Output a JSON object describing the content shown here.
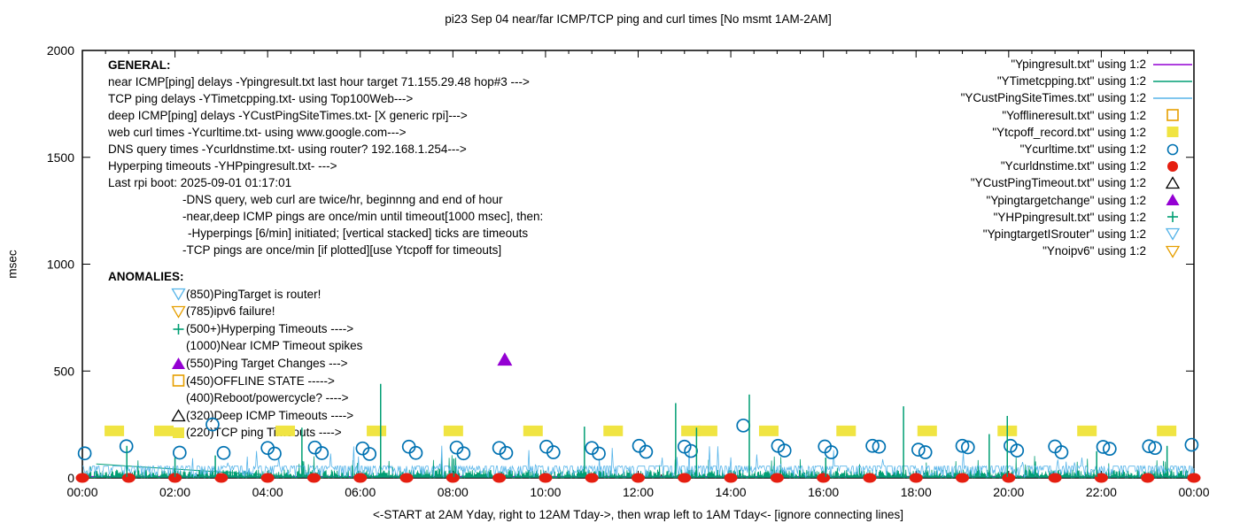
{
  "title": "pi23 Sep 04  near/far ICMP/TCP ping and curl times [No msmt 1AM-2AM]",
  "footer": "<-START at 2AM Yday, right to 12AM Tday->, then wrap left to 1AM Tday<- [ignore connecting lines]",
  "general": {
    "heading": "GENERAL:",
    "lines": [
      {
        "text": "near ICMP[ping] delays -Ypingresult.txt last hour target 71.155.29.48 hop#3 --->",
        "indent": 0
      },
      {
        "text": "TCP ping delays -YTimetcpping.txt- using Top100Web--->",
        "indent": 0
      },
      {
        "text": "deep ICMP[ping] delays -YCustPingSiteTimes.txt- [X generic rpi]--->",
        "indent": 0
      },
      {
        "text": "web curl times -Ycurltime.txt- using www.google.com--->",
        "indent": 0
      },
      {
        "text": "DNS query times -Ycurldnstime.txt- using router? 192.168.1.254--->",
        "indent": 0
      },
      {
        "text": "Hyperping timeouts -YHPpingresult.txt- --->",
        "indent": 0
      },
      {
        "text": "Last rpi boot: 2025-09-01 01:17:01",
        "indent": 0
      },
      {
        "text": "-DNS query, web curl are twice/hr, beginnng and end of hour",
        "indent": 84
      },
      {
        "text": "-near,deep ICMP pings are once/min until timeout[1000 msec], then:",
        "indent": 84
      },
      {
        "text": "-Hyperpings [6/min] initiated; [vertical stacked] ticks are timeouts",
        "indent": 90
      },
      {
        "text": "-TCP pings are once/min [if plotted][use Ytcpoff for timeouts]",
        "indent": 84
      }
    ]
  },
  "anomalies": {
    "heading": "ANOMALIES:",
    "items": [
      {
        "marker": "down-triangle-open",
        "color": "#56b4e9",
        "text": "(850)PingTarget is router!"
      },
      {
        "marker": "down-triangle-open",
        "color": "#e69f00",
        "text": "(785)ipv6 failure!"
      },
      {
        "marker": "plus",
        "color": "#009e73",
        "text": "(500+)Hyperping Timeouts ---->"
      },
      {
        "marker": "none",
        "color": "#000000",
        "text": "(1000)Near ICMP Timeout spikes"
      },
      {
        "marker": "triangle-filled",
        "color": "#9400d3",
        "text": "(550)Ping Target Changes --->"
      },
      {
        "marker": "square-open",
        "color": "#e69f00",
        "text": "(450)OFFLINE STATE ----->"
      },
      {
        "marker": "none",
        "color": "#000000",
        "text": "(400)Reboot/powercycle? ---->"
      },
      {
        "marker": "triangle-open",
        "color": "#000000",
        "text": "(320)Deep ICMP Timeouts ---->"
      },
      {
        "marker": "square-filled",
        "color": "#f0e442",
        "text": "(220)TCP ping Timeouts ---->"
      }
    ]
  },
  "legend": [
    {
      "label": "\"Ypingresult.txt\" using 1:2",
      "marker": "line",
      "color": "#9400d3"
    },
    {
      "label": "\"YTimetcpping.txt\" using 1:2",
      "marker": "line",
      "color": "#009e73"
    },
    {
      "label": "\"YCustPingSiteTimes.txt\" using 1:2",
      "marker": "line",
      "color": "#56b4e9"
    },
    {
      "label": "\"Yofflineresult.txt\" using 1:2",
      "marker": "square-open",
      "color": "#e69f00"
    },
    {
      "label": "\"Ytcpoff_record.txt\" using 1:2",
      "marker": "square-filled",
      "color": "#f0e442"
    },
    {
      "label": "\"Ycurltime.txt\" using 1:2",
      "marker": "circle-open",
      "color": "#0072b2"
    },
    {
      "label": "\"Ycurldnstime.txt\" using 1:2",
      "marker": "circle-filled",
      "color": "#e51e10"
    },
    {
      "label": "\"YCustPingTimeout.txt\" using 1:2",
      "marker": "triangle-open",
      "color": "#000000"
    },
    {
      "label": "\"Ypingtargetchange\" using 1:2",
      "marker": "triangle-filled",
      "color": "#9400d3"
    },
    {
      "label": "\"YHPpingresult.txt\" using 1:2",
      "marker": "plus",
      "color": "#009e73"
    },
    {
      "label": "\"YpingtargetISrouter\" using 1:2",
      "marker": "down-triangle-open",
      "color": "#56b4e9"
    },
    {
      "label": "\"Ynoipv6\" using 1:2",
      "marker": "down-triangle-open",
      "color": "#e69f00"
    }
  ],
  "chart_data": {
    "type": "line",
    "title": "pi23 Sep 04  near/far ICMP/TCP ping and curl times [No msmt 1AM-2AM]",
    "ylabel": "msec",
    "ylim": [
      0,
      2000
    ],
    "y_ticks": [
      0,
      500,
      1000,
      1500,
      2000
    ],
    "x_ticks": [
      "00:00",
      "02:00",
      "04:00",
      "06:00",
      "08:00",
      "10:00",
      "12:00",
      "14:00",
      "16:00",
      "18:00",
      "20:00",
      "22:00",
      "00:00"
    ],
    "x_hours_span": 24,
    "x_minor_step_hours": 0.5,
    "grid": false,
    "legend_position": "top-right",
    "series": [
      {
        "name": "Ypingresult.txt",
        "desc": "near ICMP ping delays",
        "style": "flatline",
        "color": "#9400d3",
        "range_hours": [
          0.1,
          24
        ],
        "flat_value_msec": 6
      },
      {
        "name": "YTimetcpping.txt",
        "desc": "TCP ping delays",
        "style": "noise-grass",
        "color": "#009e73",
        "range_hours": [
          0,
          24
        ],
        "base_msec": 1,
        "max_msec": 38,
        "spike_chance": 0.06,
        "spike_max_msec": 110,
        "seed": 42,
        "connector_line": [
          [
            0.3,
            65
          ],
          [
            4.3,
            10
          ]
        ]
      },
      {
        "name": "YCustPingSiteTimes.txt",
        "desc": "deep ICMP ping delays",
        "style": "noise-band",
        "color": "#56b4e9",
        "range_hours": [
          0,
          24
        ],
        "band_msec": 55,
        "band_share": 0.42,
        "min_msec": 4,
        "max_msec": 52,
        "spike_chance": 0.03,
        "spike_max_msec": 155,
        "seed": 1337
      },
      {
        "name": "Yofflineresult.txt",
        "desc": "offline state events",
        "style": "points",
        "marker": "square-open",
        "color": "#e69f00",
        "points": []
      },
      {
        "name": "Ytcpoff_record.txt",
        "desc": "TCP ping timeouts (plotted at 220 msec)",
        "style": "points",
        "marker": "square-filled",
        "color": "#f0e442",
        "points": [
          [
            0.69,
            220
          ],
          [
            1.76,
            220
          ],
          [
            4.38,
            220
          ],
          [
            6.35,
            220
          ],
          [
            8.01,
            220
          ],
          [
            9.73,
            220
          ],
          [
            11.46,
            220
          ],
          [
            13.14,
            220
          ],
          [
            13.5,
            220
          ],
          [
            14.82,
            220
          ],
          [
            16.49,
            220
          ],
          [
            18.24,
            220
          ],
          [
            19.97,
            220
          ],
          [
            21.69,
            220
          ],
          [
            23.41,
            220
          ]
        ]
      },
      {
        "name": "Ycurltime.txt",
        "desc": "web curl times",
        "style": "points",
        "marker": "circle-open",
        "color": "#0072b2",
        "points": [
          [
            0.05,
            115
          ],
          [
            0.95,
            148
          ],
          [
            2.1,
            118
          ],
          [
            2.81,
            250
          ],
          [
            3.05,
            117
          ],
          [
            4.0,
            140
          ],
          [
            4.15,
            114
          ],
          [
            5.02,
            142
          ],
          [
            5.17,
            116
          ],
          [
            6.05,
            138
          ],
          [
            6.2,
            112
          ],
          [
            7.05,
            146
          ],
          [
            7.2,
            117
          ],
          [
            8.08,
            142
          ],
          [
            8.23,
            115
          ],
          [
            9.0,
            140
          ],
          [
            9.15,
            117
          ],
          [
            10.02,
            146
          ],
          [
            10.17,
            120
          ],
          [
            11.0,
            140
          ],
          [
            11.15,
            114
          ],
          [
            12.02,
            150
          ],
          [
            12.17,
            122
          ],
          [
            13.0,
            146
          ],
          [
            13.14,
            126
          ],
          [
            14.27,
            245
          ],
          [
            15.02,
            150
          ],
          [
            15.16,
            128
          ],
          [
            16.03,
            147
          ],
          [
            16.17,
            120
          ],
          [
            17.06,
            150
          ],
          [
            17.2,
            146
          ],
          [
            18.05,
            132
          ],
          [
            18.2,
            120
          ],
          [
            19.0,
            150
          ],
          [
            19.12,
            143
          ],
          [
            20.04,
            150
          ],
          [
            20.18,
            128
          ],
          [
            21.0,
            147
          ],
          [
            21.14,
            120
          ],
          [
            22.04,
            145
          ],
          [
            22.18,
            136
          ],
          [
            23.03,
            148
          ],
          [
            23.16,
            140
          ],
          [
            23.95,
            155
          ]
        ]
      },
      {
        "name": "Ycurldnstime.txt",
        "desc": "DNS query times",
        "style": "points",
        "marker": "dot-wide",
        "color": "#e51e10",
        "points": [
          [
            0,
            0
          ],
          [
            1,
            0
          ],
          [
            2,
            0
          ],
          [
            3,
            0
          ],
          [
            4,
            0
          ],
          [
            5,
            0
          ],
          [
            6,
            0
          ],
          [
            7,
            0
          ],
          [
            8,
            0
          ],
          [
            9,
            0
          ],
          [
            10,
            0
          ],
          [
            11,
            0
          ],
          [
            12,
            0
          ],
          [
            13,
            0
          ],
          [
            14,
            0
          ],
          [
            15,
            0
          ],
          [
            16,
            0
          ],
          [
            17,
            0
          ],
          [
            18,
            0
          ],
          [
            19,
            0
          ],
          [
            20,
            0
          ],
          [
            21,
            0
          ],
          [
            22,
            0
          ],
          [
            23,
            0
          ],
          [
            24,
            0
          ]
        ]
      },
      {
        "name": "YCustPingTimeout.txt",
        "desc": "deep ICMP timeouts",
        "style": "points",
        "marker": "triangle-open",
        "color": "#000000",
        "points": []
      },
      {
        "name": "Ypingtargetchange",
        "desc": "ping target changes (plotted at 550 msec)",
        "style": "points",
        "marker": "triangle-filled",
        "color": "#9400d3",
        "points": [
          [
            9.12,
            550
          ]
        ]
      },
      {
        "name": "YHPpingresult.txt",
        "desc": "hyperping timeouts, vertical stacked ticks",
        "style": "spikes",
        "color": "#009e73",
        "spikes": [
          [
            0.96,
            150
          ],
          [
            2.0,
            95
          ],
          [
            2.87,
            105
          ],
          [
            4.74,
            235
          ],
          [
            6.44,
            440
          ],
          [
            8.02,
            90
          ],
          [
            10.84,
            240
          ],
          [
            12.81,
            350
          ],
          [
            13.26,
            235
          ],
          [
            14.4,
            390
          ],
          [
            16.05,
            95
          ],
          [
            17.73,
            335
          ],
          [
            19.58,
            205
          ],
          [
            19.97,
            290
          ],
          [
            21.9,
            125
          ],
          [
            23.42,
            150
          ]
        ]
      },
      {
        "name": "YpingtargetISrouter",
        "desc": "ping target is router events",
        "style": "points",
        "marker": "down-triangle-open",
        "color": "#56b4e9",
        "points": []
      },
      {
        "name": "Ynoipv6",
        "desc": "ipv6 failure events",
        "style": "points",
        "marker": "down-triangle-open",
        "color": "#e69f00",
        "points": []
      }
    ]
  }
}
